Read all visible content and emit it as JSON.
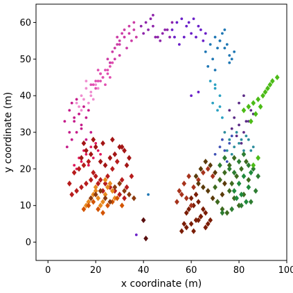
{
  "chart_data": {
    "type": "scatter",
    "title": "",
    "xlabel": "x coordinate (m)",
    "ylabel": "y coordinate (m)",
    "xlim": [
      -5,
      100
    ],
    "ylim": [
      -5,
      65
    ],
    "xticks": [
      0,
      20,
      40,
      60,
      80,
      100
    ],
    "yticks": [
      0,
      10,
      20,
      30,
      40,
      50,
      60
    ],
    "grid": false,
    "legend": "none",
    "series": [
      {
        "marker": "dot",
        "color": "#e04fb0",
        "x": [
          19,
          21,
          23,
          25,
          22,
          24,
          26,
          20,
          18,
          22,
          23,
          21,
          25,
          27,
          24,
          20,
          22,
          26
        ],
        "y": [
          43,
          44,
          45,
          46,
          46,
          47,
          48,
          42,
          43,
          44,
          45,
          47,
          47,
          49,
          43,
          44,
          46,
          45
        ]
      },
      {
        "marker": "dot",
        "color": "#cc3ca5",
        "x": [
          25,
          27,
          29,
          30,
          32,
          34,
          36,
          28,
          30,
          33,
          35,
          31,
          26,
          29,
          34,
          37,
          30,
          32,
          28,
          36
        ],
        "y": [
          50,
          52,
          54,
          55,
          56,
          57,
          58,
          53,
          51,
          53,
          55,
          57,
          49,
          56,
          59,
          56,
          54,
          58,
          50,
          60
        ]
      },
      {
        "marker": "dot",
        "color": "#f08ccf",
        "x": [
          12,
          14,
          16,
          18,
          20,
          15,
          17,
          13,
          19,
          21,
          16,
          14,
          18
        ],
        "y": [
          38,
          40,
          42,
          41,
          43,
          39,
          38,
          37,
          39,
          42,
          44,
          36,
          40
        ]
      },
      {
        "marker": "dot",
        "color": "#c51b8a",
        "x": [
          8,
          10,
          12,
          14,
          16,
          9,
          11,
          13,
          15,
          17,
          10,
          12,
          14,
          7,
          9,
          18,
          16,
          11
        ],
        "y": [
          26,
          28,
          30,
          32,
          34,
          30,
          33,
          35,
          37,
          36,
          38,
          39,
          31,
          33,
          36,
          30,
          28,
          34
        ]
      },
      {
        "marker": "dot",
        "color": "#e0185b",
        "x": [
          12,
          14,
          16,
          18,
          20,
          13,
          15,
          17,
          19,
          21,
          11,
          22
        ],
        "y": [
          20,
          22,
          24,
          26,
          27,
          23,
          25,
          21,
          23,
          25,
          21,
          24
        ]
      },
      {
        "marker": "dot",
        "color": "#8e24aa",
        "x": [
          40,
          42,
          44,
          46,
          48,
          50,
          41,
          43,
          45,
          47,
          49,
          39,
          52,
          44,
          51
        ],
        "y": [
          57,
          58,
          59,
          56,
          57,
          58,
          60,
          61,
          56,
          55,
          58,
          59,
          60,
          62,
          56
        ]
      },
      {
        "marker": "dot",
        "color": "#6a1fc8",
        "x": [
          52,
          54,
          56,
          58,
          60,
          62,
          64,
          66,
          55,
          57,
          59,
          61,
          63,
          65,
          53,
          60,
          63
        ],
        "y": [
          58,
          60,
          61,
          59,
          57,
          56,
          58,
          57,
          54,
          56,
          60,
          61,
          59,
          55,
          56,
          40,
          41
        ]
      },
      {
        "marker": "dot",
        "color": "#1f77b4",
        "x": [
          66,
          68,
          70,
          72,
          74,
          76,
          78,
          67,
          69,
          71,
          73,
          75,
          77,
          70,
          74,
          72,
          76
        ],
        "y": [
          52,
          54,
          56,
          55,
          53,
          51,
          52,
          48,
          50,
          53,
          57,
          54,
          50,
          47,
          58,
          55,
          49
        ]
      },
      {
        "marker": "dot",
        "color": "#2aa1c2",
        "x": [
          68,
          70,
          72,
          69,
          71,
          73,
          70,
          72
        ],
        "y": [
          44,
          42,
          40,
          38,
          36,
          34,
          43,
          37
        ]
      },
      {
        "marker": "dot",
        "color": "#5b2a86",
        "x": [
          76,
          78,
          80,
          82,
          84,
          86,
          77,
          79,
          81,
          83,
          85,
          80,
          82,
          84
        ],
        "y": [
          36,
          34,
          32,
          30,
          33,
          35,
          31,
          29,
          27,
          33,
          36,
          38,
          40,
          37
        ]
      },
      {
        "marker": "dot",
        "color": "#2b8c9c",
        "x": [
          74,
          76,
          78,
          80,
          82,
          84,
          86,
          75,
          77,
          79,
          81,
          83,
          85
        ],
        "y": [
          30,
          28,
          26,
          27,
          25,
          28,
          26,
          25,
          24,
          30,
          28,
          29,
          25
        ]
      },
      {
        "marker": "dot",
        "color": "#3f51b5",
        "x": [
          70,
          72,
          74,
          76,
          78,
          73,
          75,
          77
        ],
        "y": [
          24,
          26,
          25,
          27,
          23,
          28,
          22,
          29
        ]
      },
      {
        "marker": "diamond",
        "color": "#b71c1c",
        "x": [
          10,
          12,
          14,
          16,
          18,
          20,
          22,
          24,
          26,
          28,
          30,
          32,
          11,
          13,
          15,
          17,
          19,
          21,
          23,
          25,
          27,
          29,
          31,
          33,
          9,
          35
        ],
        "y": [
          13,
          14,
          15,
          16,
          17,
          18,
          17,
          16,
          15,
          14,
          13,
          12,
          19,
          20,
          21,
          22,
          19,
          16,
          14,
          18,
          20,
          22,
          17,
          15,
          16,
          18
        ]
      },
      {
        "marker": "diamond",
        "color": "#a31515",
        "x": [
          14,
          16,
          18,
          20,
          22,
          24,
          26,
          28,
          30,
          32,
          34,
          15,
          19,
          23,
          27,
          31,
          33
        ],
        "y": [
          23,
          25,
          24,
          26,
          22,
          21,
          23,
          24,
          26,
          25,
          23,
          27,
          28,
          27,
          28,
          26,
          21
        ]
      },
      {
        "marker": "diamond",
        "color": "#e8891f",
        "x": [
          17,
          18,
          19,
          20,
          21,
          22,
          23,
          24,
          25,
          26,
          27,
          28,
          16,
          20,
          24
        ],
        "y": [
          11,
          12,
          13,
          14,
          12,
          10,
          11,
          13,
          15,
          16,
          14,
          12,
          10,
          15,
          17
        ]
      },
      {
        "marker": "diamond",
        "color": "#d35400",
        "x": [
          15,
          17,
          19,
          21,
          23,
          25,
          27,
          29,
          31
        ],
        "y": [
          9,
          10,
          11,
          9,
          8,
          10,
          11,
          12,
          10
        ]
      },
      {
        "marker": "diamond",
        "color": "#8b3a0e",
        "x": [
          18,
          20,
          22,
          24,
          26,
          28,
          30,
          32,
          34,
          36
        ],
        "y": [
          12,
          13,
          14,
          12,
          11,
          15,
          16,
          14,
          13,
          12
        ]
      },
      {
        "marker": "diamond",
        "color": "#7a1d05",
        "x": [
          56,
          58,
          60,
          62,
          64,
          66,
          68,
          57,
          59,
          61,
          63,
          65,
          67,
          60,
          62,
          64,
          66,
          58,
          61,
          63
        ],
        "y": [
          3,
          4,
          5,
          6,
          7,
          8,
          6,
          5,
          9,
          10,
          11,
          9,
          5,
          12,
          13,
          7,
          4,
          8,
          3,
          6
        ]
      },
      {
        "marker": "diamond",
        "color": "#a6331c",
        "x": [
          55,
          57,
          59,
          61,
          63,
          65,
          67,
          69,
          54,
          56,
          58,
          60
        ],
        "y": [
          14,
          16,
          18,
          15,
          17,
          19,
          20,
          18,
          11,
          13,
          12,
          10
        ]
      },
      {
        "marker": "diamond",
        "color": "#5a3a0a",
        "x": [
          62,
          64,
          66,
          68,
          70,
          72,
          63,
          65,
          67,
          69,
          71,
          73,
          74
        ],
        "y": [
          18,
          20,
          22,
          21,
          19,
          17,
          16,
          15,
          14,
          12,
          11,
          13,
          16
        ]
      },
      {
        "marker": "diamond",
        "color": "#3d6b1f",
        "x": [
          70,
          72,
          74,
          76,
          78,
          80,
          82,
          71,
          73,
          75,
          77,
          79,
          81,
          83,
          84,
          76,
          78
        ],
        "y": [
          15,
          17,
          19,
          14,
          12,
          10,
          13,
          11,
          9,
          8,
          16,
          18,
          20,
          22,
          17,
          21,
          23
        ]
      },
      {
        "marker": "diamond",
        "color": "#2e7d32",
        "x": [
          72,
          74,
          76,
          78,
          80,
          82,
          84,
          86,
          88,
          73,
          77,
          81,
          85,
          87
        ],
        "y": [
          21,
          23,
          20,
          19,
          22,
          24,
          21,
          20,
          18,
          8,
          9,
          10,
          11,
          14
        ]
      },
      {
        "marker": "diamond",
        "color": "#1f8a3c",
        "x": [
          78,
          80,
          82,
          84,
          79,
          83,
          85,
          81
        ],
        "y": [
          14,
          16,
          18,
          15,
          12,
          11,
          19,
          13
        ]
      },
      {
        "marker": "diamond",
        "color": "#4cbb17",
        "x": [
          82,
          84,
          86,
          88,
          90,
          92,
          94,
          96,
          85,
          87,
          89,
          91,
          93,
          86,
          88
        ],
        "y": [
          36,
          37,
          38,
          39,
          40,
          42,
          44,
          45,
          33,
          35,
          37,
          41,
          43,
          21,
          23
        ]
      },
      {
        "marker": "diamond",
        "color": "#5a1010",
        "x": [
          40,
          41
        ],
        "y": [
          6,
          1
        ]
      },
      {
        "marker": "dot",
        "color": "#1f77b4",
        "x": [
          42
        ],
        "y": [
          13
        ]
      },
      {
        "marker": "dot",
        "color": "#6a1fc8",
        "x": [
          37
        ],
        "y": [
          2
        ]
      }
    ]
  }
}
